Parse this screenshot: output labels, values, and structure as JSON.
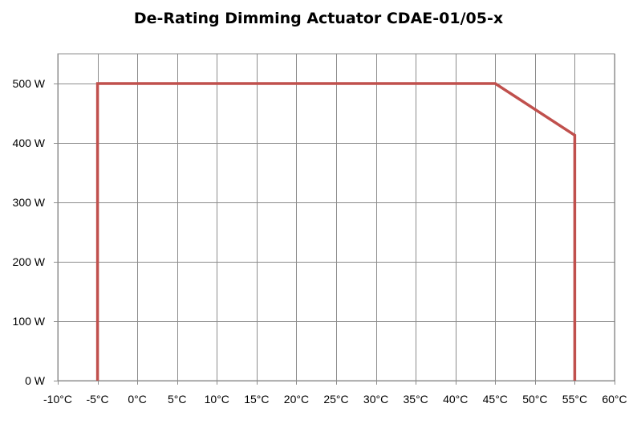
{
  "chart_data": {
    "type": "line",
    "title": "De-Rating Dimming Actuator CDAE-01/05-x",
    "xlabel": "",
    "ylabel": "",
    "x_tick_labels": [
      "-10°C",
      "-5°C",
      "0°C",
      "5°C",
      "10°C",
      "15°C",
      "20°C",
      "25°C",
      "30°C",
      "35°C",
      "40°C",
      "45°C",
      "50°C",
      "55°C",
      "60°C"
    ],
    "x_ticks": [
      -10,
      -5,
      0,
      5,
      10,
      15,
      20,
      25,
      30,
      35,
      40,
      45,
      50,
      55,
      60
    ],
    "y_tick_labels": [
      "0 W",
      "100 W",
      "200 W",
      "300 W",
      "400 W",
      "500 W"
    ],
    "y_ticks": [
      0,
      100,
      200,
      300,
      400,
      500
    ],
    "xlim": [
      -10,
      60
    ],
    "ylim": [
      0,
      550
    ],
    "grid": true,
    "legend": "none",
    "series": [
      {
        "color": "#C0504D",
        "x": [
          -5,
          -5,
          45,
          55,
          55
        ],
        "y": [
          0,
          500,
          500,
          413,
          0
        ]
      }
    ]
  }
}
